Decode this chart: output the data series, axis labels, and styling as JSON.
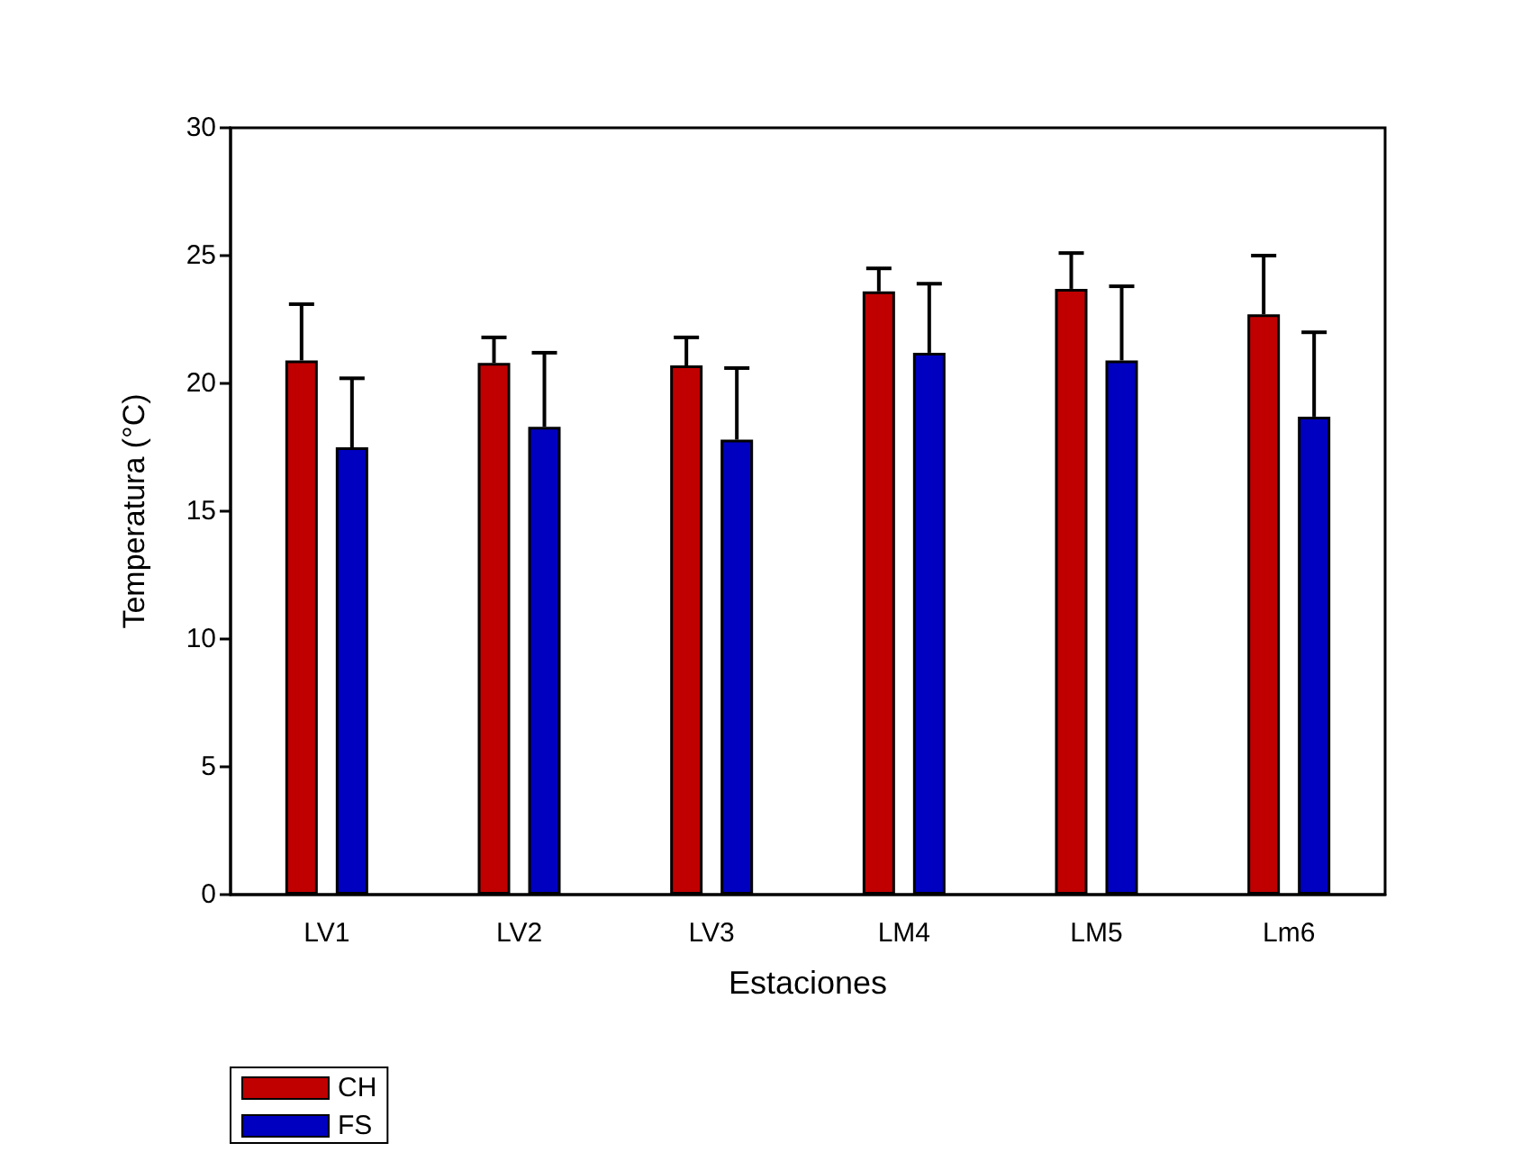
{
  "chart_data": {
    "type": "bar",
    "categories": [
      "LV1",
      "LV2",
      "LV3",
      "LM4",
      "LM5",
      "Lm6"
    ],
    "series": [
      {
        "name": "CH",
        "color": "#c00000",
        "values": [
          20.9,
          20.8,
          20.7,
          23.6,
          23.7,
          22.7
        ],
        "errors": [
          2.2,
          1.0,
          1.1,
          0.9,
          1.4,
          2.3
        ]
      },
      {
        "name": "FS",
        "color": "#0000c0",
        "values": [
          17.5,
          18.3,
          17.8,
          21.2,
          20.9,
          18.7
        ],
        "errors": [
          2.7,
          2.9,
          2.8,
          2.7,
          2.9,
          3.3
        ]
      }
    ],
    "xlabel": "Estaciones",
    "ylabel": "Temperatura (°C)",
    "ylim": [
      0,
      30
    ],
    "yticks": [
      0,
      5,
      10,
      15,
      20,
      25,
      30
    ],
    "grid": false,
    "legend": "bottom left"
  }
}
